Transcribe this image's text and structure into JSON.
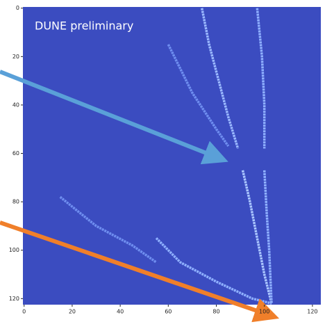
{
  "chart_data": {
    "type": "heatmap",
    "annotation": "DUNE preliminary",
    "background": "#3b4cc0",
    "xlim": [
      -0.5,
      123.5
    ],
    "xticks": [
      0,
      20,
      40,
      60,
      80,
      100,
      120
    ],
    "ylim": [
      122.5,
      -0.5
    ],
    "yticks": [
      0,
      20,
      40,
      60,
      80,
      100,
      120
    ],
    "tracks": [
      {
        "color": "#9ab8ff",
        "x": [
          74,
          77,
          81,
          85,
          89
        ],
        "y": [
          0,
          15,
          30,
          45,
          58
        ]
      },
      {
        "color": "#8fb0ff",
        "x": [
          97,
          99,
          100,
          100
        ],
        "y": [
          0,
          20,
          40,
          58
        ]
      },
      {
        "color": "#aac6ff",
        "x": [
          91,
          94,
          97,
          100,
          103
        ],
        "y": [
          67,
          80,
          95,
          110,
          122
        ]
      },
      {
        "color": "#8fb0ff",
        "x": [
          100,
          101,
          102,
          103
        ],
        "y": [
          67,
          85,
          100,
          122
        ]
      },
      {
        "color": "#8fb0ff",
        "x": [
          55,
          65,
          80,
          95,
          103
        ],
        "y": [
          95,
          105,
          113,
          120,
          122
        ]
      },
      {
        "color": "#6f8ef0",
        "x": [
          15,
          30,
          45,
          55
        ],
        "y": [
          78,
          90,
          98,
          105
        ]
      },
      {
        "color": "#6f8ef0",
        "x": [
          60,
          70,
          80,
          85
        ],
        "y": [
          15,
          35,
          50,
          57
        ]
      }
    ]
  }
}
